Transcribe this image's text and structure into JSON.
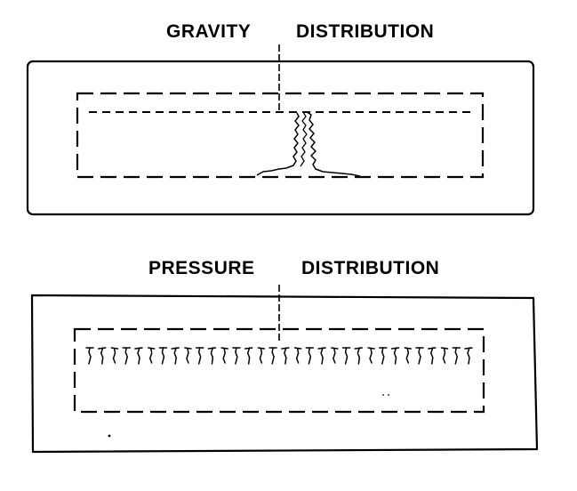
{
  "panels": {
    "gravity": {
      "label_left": "GRAVITY",
      "label_right": "DISTRIBUTION"
    },
    "pressure": {
      "label_left": "PRESSURE",
      "label_right": "DISTRIBUTION"
    }
  },
  "colors": {
    "ink": "#000000",
    "background": "#ffffff"
  }
}
